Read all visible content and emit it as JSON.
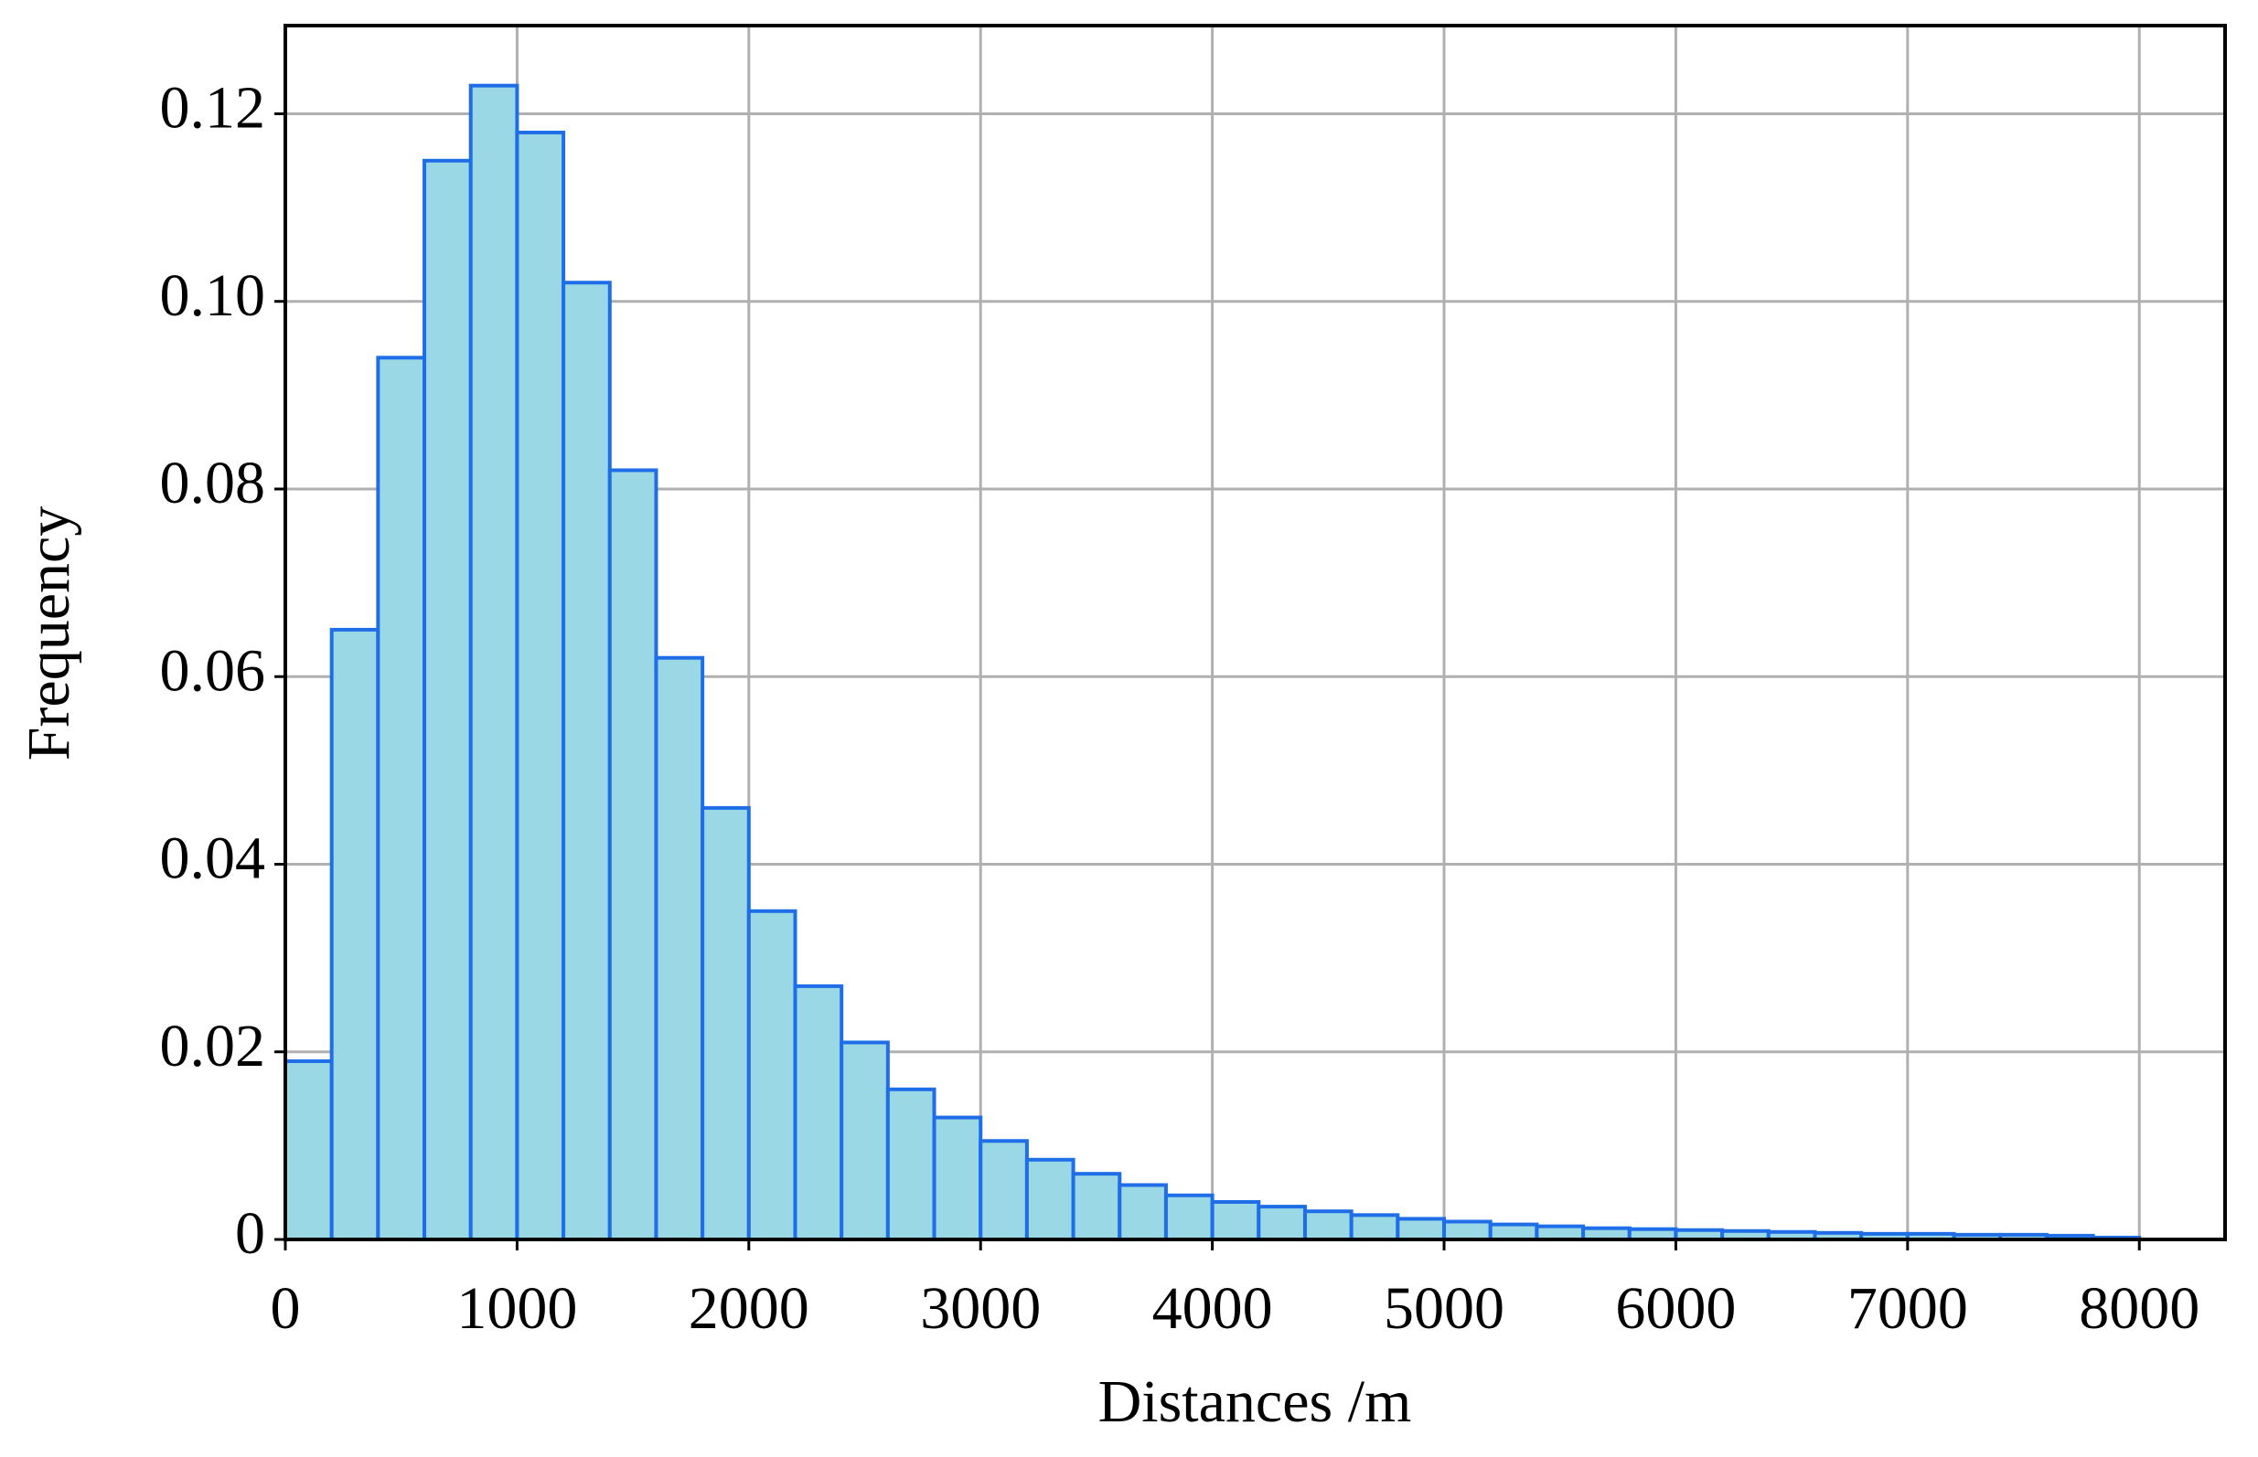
{
  "chart_data": {
    "type": "histogram",
    "x_label": "Distances /m",
    "y_label": "Frequency",
    "bins": [
      0,
      200,
      400,
      600,
      800,
      1000,
      1200,
      1400,
      1600,
      1800,
      2000,
      2200,
      2400,
      2600,
      2800,
      3000,
      3200,
      3400,
      3600,
      3800,
      4000,
      4200,
      4400,
      4600,
      4800,
      5000,
      5200,
      5400,
      5600,
      5800,
      6000,
      6200,
      6400,
      6600,
      6800,
      7000,
      7200,
      7400,
      7600,
      7800,
      8000
    ],
    "values": [
      0.019,
      0.065,
      0.094,
      0.115,
      0.123,
      0.118,
      0.102,
      0.082,
      0.062,
      0.046,
      0.035,
      0.027,
      0.021,
      0.016,
      0.013,
      0.0105,
      0.0085,
      0.007,
      0.0058,
      0.0047,
      0.004,
      0.0035,
      0.003,
      0.0026,
      0.0022,
      0.0019,
      0.0016,
      0.0014,
      0.0012,
      0.0011,
      0.001,
      0.0009,
      0.0008,
      0.0007,
      0.0006,
      0.0006,
      0.0005,
      0.0005,
      0.0004,
      0.0002
    ],
    "color": "#9ad8e6",
    "edge_color": "#1f6ee8",
    "xlim": [
      0,
      8370
    ],
    "xticks": [
      0,
      1000,
      2000,
      3000,
      4000,
      5000,
      6000,
      7000,
      8000
    ],
    "ylim": [
      0,
      0.1294
    ],
    "yticks": [
      0,
      0.02,
      0.04,
      0.06,
      0.08,
      {
        "value": 0.1,
        "label": "0.10"
      },
      0.12
    ],
    "grid": true
  }
}
